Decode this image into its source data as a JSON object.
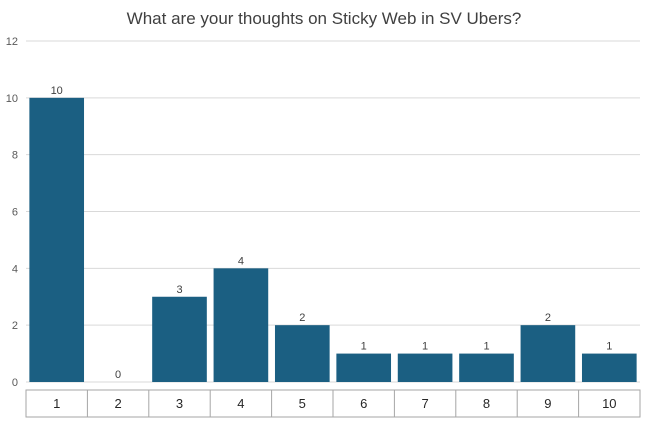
{
  "chart_data": {
    "type": "bar",
    "title": "What are your thoughts on Sticky Web in SV Ubers?",
    "categories": [
      "1",
      "2",
      "3",
      "4",
      "5",
      "6",
      "7",
      "8",
      "9",
      "10"
    ],
    "values": [
      10,
      0,
      3,
      4,
      2,
      1,
      1,
      1,
      2,
      1
    ],
    "data_labels": [
      "10",
      "0",
      "3",
      "4",
      "2",
      "1",
      "1",
      "1",
      "2",
      "1"
    ],
    "yticks": [
      "0",
      "2",
      "4",
      "6",
      "8",
      "10",
      "12"
    ],
    "ylim": [
      0,
      12
    ],
    "xlabel": "",
    "ylabel": "",
    "grid": true,
    "legend": "none",
    "colors": {
      "bar": "#1b5f82",
      "grid": "#d9d9d9",
      "axis_box": "#a6a6a6"
    }
  }
}
